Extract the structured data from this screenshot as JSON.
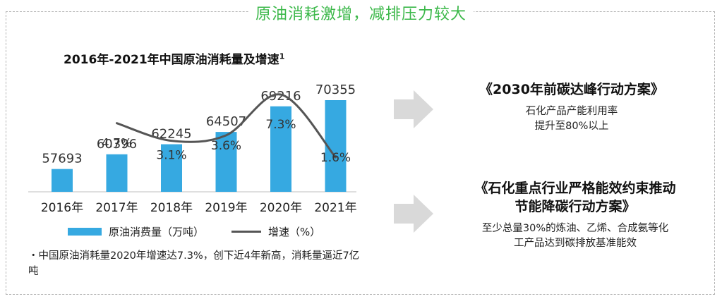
{
  "header": {
    "title": "原油消耗激增，减排压力较大"
  },
  "chart_data": {
    "type": "bar",
    "title": "2016年-2021年中国原油消耗量及增速",
    "title_footnote": "1",
    "categories": [
      "2016年",
      "2017年",
      "2018年",
      "2019年",
      "2020年",
      "2021年"
    ],
    "series": [
      {
        "name": "原油消费量（万吨）",
        "type": "bar",
        "values": [
          57693,
          60396,
          62245,
          64507,
          69216,
          70355
        ],
        "color": "#36a9e1"
      },
      {
        "name": "增速（%）",
        "type": "line",
        "values": [
          null,
          4.7,
          3.1,
          3.6,
          7.3,
          1.6
        ],
        "labels": [
          "",
          "4.7%",
          "3.1%",
          "3.6%",
          "7.3%",
          "1.6%"
        ],
        "color": "#555555"
      }
    ],
    "legend": "bottom",
    "grid": false
  },
  "note": "・中国原油消耗量2020年增速达7.3%，创下近4年新高，消耗量逼近7亿吨",
  "policies": [
    {
      "title": "《2030年前碳达峰行动方案》",
      "desc": [
        "石化产品产能利用率",
        "提升至80%以上"
      ]
    },
    {
      "title": "《石化重点行业严格能效约束推动节能降碳行动方案》",
      "title_lines": [
        "《石化重点行业严格能效约束推动",
        "节能降碳行动方案》"
      ],
      "desc": [
        "至少总量30%的炼油、乙烯、合成氨等化",
        "工产品达到碳排放基准能效"
      ]
    }
  ],
  "colors": {
    "accent": "#3cb84a",
    "bar": "#36a9e1",
    "line": "#555555",
    "arrow": "#d9d9d9"
  }
}
